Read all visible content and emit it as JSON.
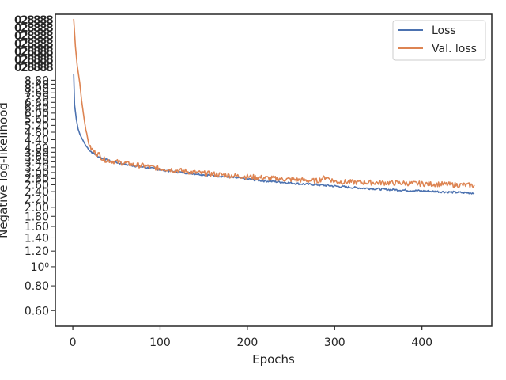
{
  "chart_data": {
    "type": "line",
    "xlabel": "Epochs",
    "ylabel": "Negative log-likelihood",
    "xlim": [
      -20,
      480
    ],
    "x_ticks": [
      0,
      100,
      200,
      300,
      400
    ],
    "y_scale": "log",
    "ylim": [
      0.5,
      19
    ],
    "y_tick_values": [
      0.6,
      0.8,
      1.0,
      1.2,
      1.4,
      1.6,
      1.8,
      2.0,
      2.2,
      2.4,
      2.6,
      2.8,
      3.0,
      3.2,
      3.4,
      3.6,
      3.8,
      4.0,
      4.4,
      4.8,
      5.2,
      5.6,
      6.0,
      6.4,
      6.8,
      7.2,
      7.6,
      8.0,
      8.4,
      8.8
    ],
    "y_tick_labels": [
      "0.60",
      "0.80",
      "10⁰",
      "1.20",
      "1.40",
      "1.60",
      "1.80",
      "2.00",
      "2.20",
      "2.40",
      "2.60",
      "2.80",
      "3.00",
      "3.20",
      "3.40",
      "3.60",
      "3.80",
      "4.00",
      "4.40",
      "4.80",
      "5.20",
      "5.60",
      "6.00",
      "6.40",
      "6.80",
      "7.20",
      "7.60",
      "8.00",
      "8.40",
      "8.80"
    ],
    "legend_position": "top-right",
    "series": [
      {
        "name": "Loss",
        "color": "#4c72b0",
        "x": [
          1,
          2,
          4,
          6,
          8,
          10,
          15,
          20,
          30,
          40,
          60,
          80,
          100,
          120,
          140,
          160,
          180,
          200,
          220,
          240,
          260,
          280,
          300,
          320,
          340,
          360,
          380,
          400,
          420,
          440,
          460
        ],
        "y": [
          9.5,
          6.6,
          5.6,
          5.0,
          4.7,
          4.5,
          4.1,
          3.85,
          3.6,
          3.45,
          3.3,
          3.2,
          3.1,
          3.02,
          2.96,
          2.9,
          2.84,
          2.78,
          2.72,
          2.68,
          2.63,
          2.6,
          2.56,
          2.52,
          2.49,
          2.46,
          2.44,
          2.42,
          2.4,
          2.38,
          2.36
        ]
      },
      {
        "name": "Val. loss",
        "color": "#dd8452",
        "x": [
          1,
          3,
          5,
          8,
          10,
          13,
          16,
          20,
          25,
          30,
          35,
          50,
          70,
          80,
          100,
          120,
          140,
          160,
          180,
          200,
          220,
          240,
          260,
          280,
          290,
          300,
          320,
          340,
          360,
          380,
          400,
          420,
          440,
          460
        ],
        "y": [
          18,
          13,
          10.5,
          8.5,
          7.0,
          5.6,
          4.6,
          4.0,
          3.8,
          3.7,
          3.5,
          3.4,
          3.28,
          3.25,
          3.15,
          3.08,
          3.0,
          2.95,
          2.9,
          2.86,
          2.82,
          2.78,
          2.75,
          2.72,
          2.85,
          2.7,
          2.68,
          2.67,
          2.66,
          2.65,
          2.63,
          2.62,
          2.6,
          2.58
        ]
      }
    ],
    "crowded_label_glyphs": [
      "0",
      "2",
      "8",
      "8",
      "8",
      "8"
    ]
  }
}
